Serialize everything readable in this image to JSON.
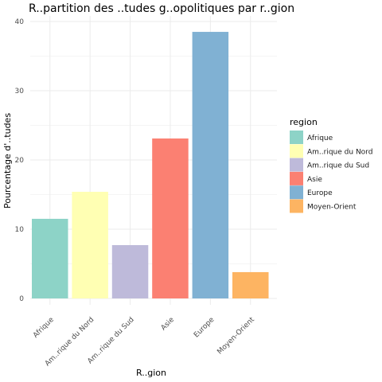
{
  "chart_data": {
    "type": "bar",
    "title": "R..partition des ..tudes g..opolitiques par r..gion",
    "xlabel": "R..gion",
    "ylabel": "Pourcentage d'..tudes",
    "categories": [
      "Afrique",
      "Am..rique du Nord",
      "Am..rique du Sud",
      "Asie",
      "Europe",
      "Moyen-Orient"
    ],
    "values": [
      11.5,
      15.4,
      7.7,
      23.1,
      38.5,
      3.8
    ],
    "colors": [
      "#8DD3C7",
      "#FFFFB3",
      "#BEBADA",
      "#FB8072",
      "#80B1D3",
      "#FDB462"
    ],
    "ylim": [
      0,
      40
    ],
    "yticks": [
      0,
      10,
      20,
      30,
      40
    ],
    "grid": true,
    "legend": {
      "title": "region",
      "position": "right",
      "entries": [
        "Afrique",
        "Am..rique du Nord",
        "Am..rique du Sud",
        "Asie",
        "Europe",
        "Moyen-Orient"
      ]
    }
  }
}
